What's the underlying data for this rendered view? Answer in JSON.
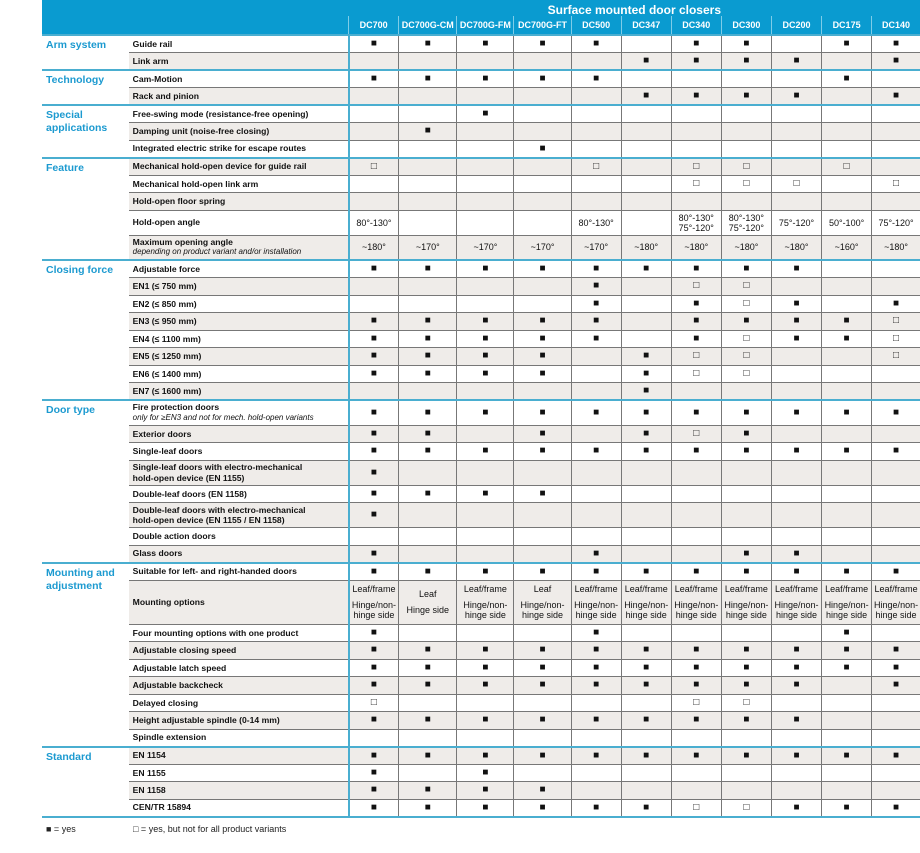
{
  "header": {
    "title": "Surface mounted door closers",
    "models": [
      "DC700",
      "DC700G-CM",
      "DC700G-FM",
      "DC700G-FT",
      "DC500",
      "DC347",
      "DC340",
      "DC300",
      "DC200",
      "DC175",
      "DC140"
    ]
  },
  "symbols": {
    "yes": "■",
    "partial": "□"
  },
  "table": {
    "groups": [
      {
        "label": "Arm system",
        "rows": [
          {
            "label": "Guide rail",
            "cells": [
              "■",
              "■",
              "■",
              "■",
              "■",
              "",
              "■",
              "■",
              "",
              "■",
              "■"
            ]
          },
          {
            "label": "Link arm",
            "cells": [
              "",
              "",
              "",
              "",
              "",
              "■",
              "■",
              "■",
              "■",
              "",
              "■"
            ]
          }
        ]
      },
      {
        "label": "Technology",
        "rows": [
          {
            "label": "Cam-Motion",
            "cells": [
              "■",
              "■",
              "■",
              "■",
              "■",
              "",
              "",
              "",
              "",
              "■",
              ""
            ]
          },
          {
            "label": "Rack and pinion",
            "cells": [
              "",
              "",
              "",
              "",
              "",
              "■",
              "■",
              "■",
              "■",
              "",
              "■"
            ]
          }
        ]
      },
      {
        "label": "Special applications",
        "rows": [
          {
            "label": "Free-swing mode (resistance-free opening)",
            "cells": [
              "",
              "",
              "■",
              "",
              "",
              "",
              "",
              "",
              "",
              "",
              ""
            ]
          },
          {
            "label": "Damping unit (noise-free closing)",
            "cells": [
              "",
              "■",
              "",
              "",
              "",
              "",
              "",
              "",
              "",
              "",
              ""
            ]
          },
          {
            "label": "Integrated electric strike for escape routes",
            "cells": [
              "",
              "",
              "",
              "■",
              "",
              "",
              "",
              "",
              "",
              "",
              ""
            ]
          }
        ]
      },
      {
        "label": "Feature",
        "rows": [
          {
            "label": "Mechanical hold-open device for guide rail",
            "cells": [
              "□",
              "",
              "",
              "",
              "□",
              "",
              "□",
              "□",
              "",
              "□",
              ""
            ]
          },
          {
            "label": "Mechanical hold-open link arm",
            "cells": [
              "",
              "",
              "",
              "",
              "",
              "",
              "□",
              "□",
              "□",
              "",
              "□"
            ]
          },
          {
            "label": "Hold-open floor spring",
            "cells": [
              "",
              "",
              "",
              "",
              "",
              "",
              "",
              "",
              "",
              "",
              ""
            ]
          },
          {
            "label": "Hold-open angle",
            "tall": true,
            "cells": [
              "80°-130°",
              "",
              "",
              "",
              "80°-130°",
              "",
              [
                "80°-130°",
                "75°-120°"
              ],
              [
                "80°-130°",
                "75°-120°"
              ],
              "75°-120°",
              "50°-100°",
              "75°-120°"
            ]
          },
          {
            "label": "Maximum opening angle",
            "sublabel": "depending on product variant and/or installation",
            "tall": true,
            "cells": [
              "~180°",
              "~170°",
              "~170°",
              "~170°",
              "~170°",
              "~180°",
              "~180°",
              "~180°",
              "~180°",
              "~160°",
              "~180°"
            ]
          }
        ]
      },
      {
        "label": "Closing force",
        "rows": [
          {
            "label": "Adjustable force",
            "cells": [
              "■",
              "■",
              "■",
              "■",
              "■",
              "■",
              "■",
              "■",
              "■",
              "",
              ""
            ]
          },
          {
            "label": "EN1 (≤ 750 mm)",
            "cells": [
              "",
              "",
              "",
              "",
              "■",
              "",
              "□",
              "□",
              "",
              "",
              ""
            ]
          },
          {
            "label": "EN2 (≤ 850 mm)",
            "cells": [
              "",
              "",
              "",
              "",
              "■",
              "",
              "■",
              "□",
              "■",
              "",
              "■"
            ]
          },
          {
            "label": "EN3 (≤ 950 mm)",
            "cells": [
              "■",
              "■",
              "■",
              "■",
              "■",
              "",
              "■",
              "■",
              "■",
              "■",
              "□"
            ]
          },
          {
            "label": "EN4 (≤ 1100 mm)",
            "cells": [
              "■",
              "■",
              "■",
              "■",
              "■",
              "",
              "■",
              "□",
              "■",
              "■",
              "□"
            ]
          },
          {
            "label": "EN5 (≤ 1250 mm)",
            "cells": [
              "■",
              "■",
              "■",
              "■",
              "",
              "■",
              "□",
              "□",
              "",
              "",
              "□"
            ]
          },
          {
            "label": "EN6 (≤ 1400 mm)",
            "cells": [
              "■",
              "■",
              "■",
              "■",
              "",
              "■",
              "□",
              "□",
              "",
              "",
              ""
            ]
          },
          {
            "label": "EN7 (≤ 1600 mm)",
            "cells": [
              "",
              "",
              "",
              "",
              "",
              "■",
              "",
              "",
              "",
              "",
              ""
            ]
          }
        ]
      },
      {
        "label": "Door type",
        "rows": [
          {
            "label": "Fire protection doors",
            "sublabel": "only for ≥EN3 and not for mech. hold-open variants",
            "tall": true,
            "cells": [
              "■",
              "■",
              "■",
              "■",
              "■",
              "■",
              "■",
              "■",
              "■",
              "■",
              "■"
            ]
          },
          {
            "label": "Exterior doors",
            "cells": [
              "■",
              "■",
              "",
              "■",
              "",
              "■",
              "□",
              "■",
              "",
              "",
              ""
            ]
          },
          {
            "label": "Single-leaf doors",
            "cells": [
              "■",
              "■",
              "■",
              "■",
              "■",
              "■",
              "■",
              "■",
              "■",
              "■",
              "■"
            ]
          },
          {
            "label": "Single-leaf doors with electro-mechanical hold-open device (EN 1155)",
            "tall": true,
            "cells": [
              "■",
              "",
              "",
              "",
              "",
              "",
              "",
              "",
              "",
              "",
              ""
            ]
          },
          {
            "label": "Double-leaf doors (EN 1158)",
            "cells": [
              "■",
              "■",
              "■",
              "■",
              "",
              "",
              "",
              "",
              "",
              "",
              ""
            ]
          },
          {
            "label": "Double-leaf doors with electro-mechanical hold-open device (EN 1155 / EN 1158)",
            "tall": true,
            "cells": [
              "■",
              "",
              "",
              "",
              "",
              "",
              "",
              "",
              "",
              "",
              ""
            ]
          },
          {
            "label": "Double action doors",
            "cells": [
              "",
              "",
              "",
              "",
              "",
              "",
              "",
              "",
              "",
              "",
              ""
            ]
          },
          {
            "label": "Glass doors",
            "cells": [
              "■",
              "",
              "",
              "",
              "■",
              "",
              "",
              "■",
              "■",
              "",
              ""
            ]
          }
        ]
      },
      {
        "label": "Mounting and adjustment",
        "rows": [
          {
            "label": "Suitable for left- and right-handed doors",
            "cells": [
              "■",
              "■",
              "■",
              "■",
              "■",
              "■",
              "■",
              "■",
              "■",
              "■",
              "■"
            ]
          },
          {
            "label": "Mounting options",
            "mount": true,
            "cells": [
              [
                "Leaf/frame",
                "Hinge/non-hinge side"
              ],
              [
                "Leaf",
                "Hinge side"
              ],
              [
                "Leaf/frame",
                "Hinge/non-hinge side"
              ],
              [
                "Leaf",
                "Hinge/non-hinge side"
              ],
              [
                "Leaf/frame",
                "Hinge/non-hinge side"
              ],
              [
                "Leaf/frame",
                "Hinge/non-hinge side"
              ],
              [
                "Leaf/frame",
                "Hinge/non-hinge side"
              ],
              [
                "Leaf/frame",
                "Hinge/non-hinge side"
              ],
              [
                "Leaf/frame",
                "Hinge/non-hinge side"
              ],
              [
                "Leaf/frame",
                "Hinge/non-hinge side"
              ],
              [
                "Leaf/frame",
                "Hinge/non-hinge side"
              ]
            ]
          },
          {
            "label": "Four mounting options with one product",
            "cells": [
              "■",
              "",
              "",
              "",
              "■",
              "",
              "",
              "",
              "",
              "■",
              ""
            ]
          },
          {
            "label": "Adjustable closing speed",
            "cells": [
              "■",
              "■",
              "■",
              "■",
              "■",
              "■",
              "■",
              "■",
              "■",
              "■",
              "■"
            ]
          },
          {
            "label": "Adjustable latch speed",
            "cells": [
              "■",
              "■",
              "■",
              "■",
              "■",
              "■",
              "■",
              "■",
              "■",
              "■",
              "■"
            ]
          },
          {
            "label": "Adjustable backcheck",
            "cells": [
              "■",
              "■",
              "■",
              "■",
              "■",
              "■",
              "■",
              "■",
              "■",
              "",
              "■"
            ]
          },
          {
            "label": "Delayed closing",
            "cells": [
              "□",
              "",
              "",
              "",
              "",
              "",
              "□",
              "□",
              "",
              "",
              ""
            ]
          },
          {
            "label": "Height adjustable spindle (0-14 mm)",
            "cells": [
              "■",
              "■",
              "■",
              "■",
              "■",
              "■",
              "■",
              "■",
              "■",
              "",
              ""
            ]
          },
          {
            "label": "Spindle extension",
            "cells": [
              "",
              "",
              "",
              "",
              "",
              "",
              "",
              "",
              "",
              "",
              ""
            ]
          }
        ]
      },
      {
        "label": "Standard",
        "rows": [
          {
            "label": "EN 1154",
            "cells": [
              "■",
              "■",
              "■",
              "■",
              "■",
              "■",
              "■",
              "■",
              "■",
              "■",
              "■"
            ]
          },
          {
            "label": "EN 1155",
            "cells": [
              "■",
              "",
              "■",
              "",
              "",
              "",
              "",
              "",
              "",
              "",
              ""
            ]
          },
          {
            "label": "EN 1158",
            "cells": [
              "■",
              "■",
              "■",
              "■",
              "",
              "",
              "",
              "",
              "",
              "",
              ""
            ]
          },
          {
            "label": "CEN/TR 15894",
            "cells": [
              "■",
              "■",
              "■",
              "■",
              "■",
              "■",
              "□",
              "□",
              "■",
              "■",
              "■"
            ]
          }
        ]
      }
    ]
  },
  "legend": {
    "yes": "■ = yes",
    "partial": "□ = yes, but not for all product variants"
  },
  "colors": {
    "accent": "#0a9bd0",
    "group_text": "#1c9ad0",
    "row_alt": "#efece9"
  }
}
